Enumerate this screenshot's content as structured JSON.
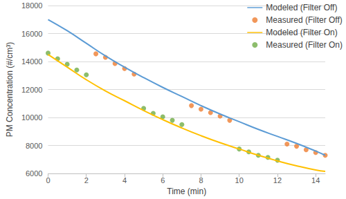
{
  "chart_data": {
    "type": "line",
    "x_label": "Time (min)",
    "y_label": "PM Concentration (#/cm³)",
    "xlim": [
      0,
      14.5
    ],
    "xticks": [
      0,
      2,
      4,
      6,
      8,
      10,
      12,
      14
    ],
    "ylim": [
      6000,
      18000
    ],
    "yticks": [
      6000,
      8000,
      10000,
      12000,
      14000,
      16000,
      18000
    ],
    "grid": true,
    "legend": "top-right",
    "series": [
      {
        "name": "Modeled (Filter Off)",
        "type": "line",
        "line_style": "solid",
        "color": "#5b9bd5",
        "x": [
          0,
          1,
          2,
          3,
          4,
          5,
          6,
          7,
          8,
          9,
          10,
          11,
          12,
          13,
          14,
          14.5
        ],
        "values": [
          17000,
          16200,
          15300,
          14400,
          13600,
          12850,
          12150,
          11500,
          10850,
          10250,
          9700,
          9150,
          8650,
          8150,
          7600,
          7300
        ]
      },
      {
        "name": "Measured (Filter Off)",
        "type": "scatter",
        "marker": "circle",
        "color": "#ed7d31",
        "x": [
          2.5,
          3,
          3.5,
          4,
          4.5,
          7.5,
          8,
          8.5,
          9,
          9.5,
          12.5,
          13,
          13.5,
          14,
          14.5
        ],
        "values": [
          14550,
          14300,
          13850,
          13500,
          13100,
          10850,
          10600,
          10350,
          10100,
          9800,
          8100,
          7950,
          7700,
          7500,
          7300
        ]
      },
      {
        "name": "Modeled (Filter On)",
        "type": "line",
        "line_style": "solid",
        "color": "#ffc000",
        "x": [
          0,
          1,
          2,
          3,
          4,
          5,
          6,
          7,
          8,
          9,
          10,
          11,
          12,
          13,
          14,
          14.5
        ],
        "values": [
          14500,
          13600,
          12700,
          11900,
          11200,
          10500,
          9850,
          9250,
          8700,
          8200,
          7750,
          7300,
          6900,
          6550,
          6250,
          6150
        ]
      },
      {
        "name": "Measured (Filter On)",
        "type": "scatter",
        "marker": "circle",
        "color": "#70ad47",
        "x": [
          0,
          0.5,
          1,
          1.5,
          2,
          5,
          5.5,
          6,
          6.5,
          7,
          10,
          10.5,
          11,
          11.5,
          12
        ],
        "values": [
          14600,
          14200,
          13800,
          13400,
          13050,
          10650,
          10300,
          10050,
          9800,
          9500,
          7750,
          7550,
          7300,
          7150,
          6950
        ]
      }
    ]
  }
}
